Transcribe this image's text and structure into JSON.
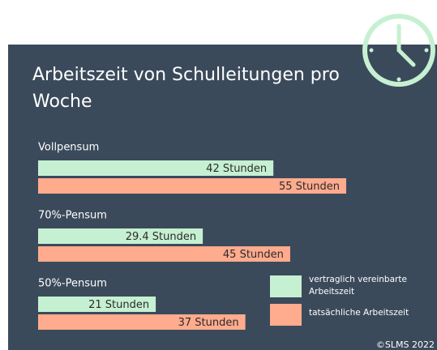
{
  "chart_data": {
    "type": "bar",
    "title": "Arbeitszeit von Schulleitungen pro Woche",
    "categories": [
      "Vollpensum",
      "70%-Pensum",
      "50%-Pensum"
    ],
    "series": [
      {
        "name": "vertraglich vereinbarte Arbeitszeit",
        "color": "#c6f0d2",
        "values": [
          42,
          29.4,
          21
        ],
        "value_labels": [
          "42 Stunden",
          "29.4 Stunden",
          "21 Stunden"
        ]
      },
      {
        "name": "tatsächliche Arbeitszeit",
        "color": "#ffab8e",
        "values": [
          55,
          45,
          37
        ],
        "value_labels": [
          "55 Stunden",
          "45 Stunden",
          "37 Stunden"
        ]
      }
    ],
    "footer": "©SLMS 2022"
  }
}
